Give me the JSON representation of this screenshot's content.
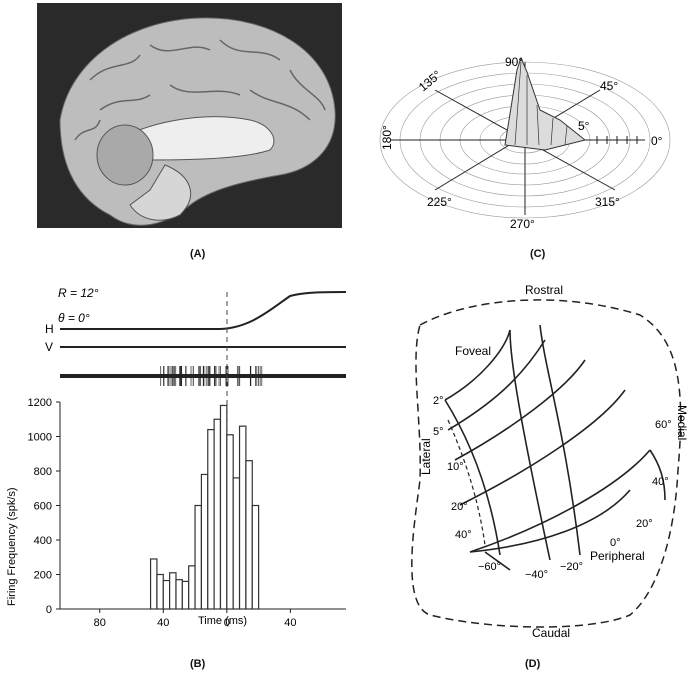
{
  "panels": {
    "a": {
      "label": "(A)"
    },
    "b": {
      "label": "(B)",
      "trace_labels": {
        "r": "R = 12°",
        "theta": "θ = 0°",
        "h": "H",
        "v": "V"
      },
      "ylabel": "Firing Frequency (spk/s)",
      "xlabel": "Time (ms)",
      "yticks": [
        "0",
        "200",
        "400",
        "600",
        "800",
        "1000",
        "1200"
      ],
      "xticks": [
        "80",
        "40",
        "0",
        "40"
      ]
    },
    "c": {
      "label": "(C)",
      "angles": [
        "90°",
        "45°",
        "0°",
        "315°",
        "270°",
        "225°",
        "180°",
        "135°"
      ],
      "amp": "5°"
    },
    "d": {
      "label": "(D)",
      "rostral": "Rostral",
      "caudal": "Caudal",
      "lateral": "Lateral",
      "medial": "Medial",
      "foveal": "Foveal",
      "peripheral": "Peripheral",
      "ecc": [
        "2°",
        "5°",
        "10°",
        "20°",
        "40°"
      ],
      "dir_right": [
        "60°",
        "40°",
        "20°",
        "0°"
      ],
      "dir_bottom": [
        "−20°",
        "−40°",
        "−60°"
      ]
    }
  },
  "chart_data": {
    "type": "bar",
    "title": "",
    "xlabel": "Time (ms)",
    "ylabel": "Firing Frequency (spk/s)",
    "x_ticks": [
      -80,
      -40,
      0,
      40
    ],
    "ylim": [
      0,
      1200
    ],
    "bins_ms": [
      [
        -48,
        -44
      ],
      [
        -44,
        -40
      ],
      [
        -40,
        -36
      ],
      [
        -36,
        -32
      ],
      [
        -32,
        -28
      ],
      [
        -28,
        -24
      ],
      [
        -24,
        -20
      ],
      [
        -20,
        -16
      ],
      [
        -16,
        -12
      ],
      [
        -12,
        -8
      ],
      [
        -8,
        -4
      ],
      [
        -4,
        0
      ],
      [
        0,
        4
      ],
      [
        4,
        8
      ],
      [
        8,
        12
      ],
      [
        12,
        16
      ],
      [
        16,
        20
      ],
      [
        20,
        24
      ]
    ],
    "values": [
      290,
      200,
      165,
      210,
      170,
      160,
      250,
      600,
      780,
      1040,
      1100,
      1180,
      1010,
      760,
      1060,
      860,
      600,
      0
    ],
    "series": [
      {
        "values": [
          290,
          200,
          165,
          210,
          170,
          160,
          250,
          600,
          780,
          1040,
          1100,
          1180,
          1010,
          760,
          1060,
          860,
          600,
          0
        ]
      }
    ],
    "grid": false,
    "vline_at": 0
  },
  "colors": {
    "ink": "#111111",
    "photo_bg": "#2a2a2a",
    "brain": "#bdbdbd"
  }
}
